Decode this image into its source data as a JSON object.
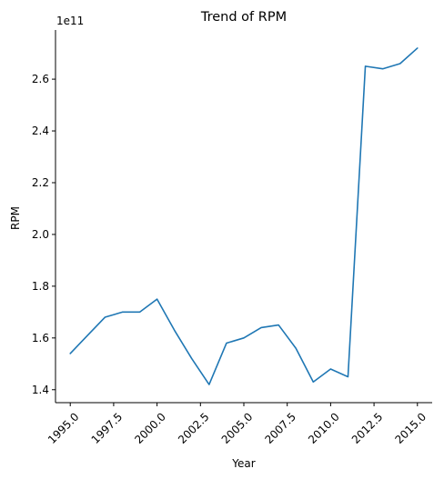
{
  "chart_data": {
    "type": "line",
    "title": "Trend of RPM",
    "xlabel": "Year",
    "ylabel": "RPM",
    "y_offset_text": "1e11",
    "x_ticks": [
      1995.0,
      1997.5,
      2000.0,
      2002.5,
      2005.0,
      2007.5,
      2010.0,
      2012.5,
      2015.0
    ],
    "x_tick_labels": [
      "1995.0",
      "1997.5",
      "2000.0",
      "2002.5",
      "2005.0",
      "2007.5",
      "2010.0",
      "2012.5",
      "2015.0"
    ],
    "y_ticks": [
      140000000000.0,
      160000000000.0,
      180000000000.0,
      200000000000.0,
      220000000000.0,
      240000000000.0,
      260000000000.0
    ],
    "y_tick_labels": [
      "1.4",
      "1.6",
      "1.8",
      "2.0",
      "2.2",
      "2.4",
      "2.6"
    ],
    "xlim": [
      1994.15,
      2015.85
    ],
    "ylim": [
      135000000000.0,
      279000000000.0
    ],
    "grid": false,
    "legend": "none",
    "series": [
      {
        "color": "#1f77b4",
        "x": [
          1995,
          1996,
          1997,
          1998,
          1999,
          2000,
          2001,
          2002,
          2003,
          2004,
          2005,
          2006,
          2007,
          2008,
          2009,
          2010,
          2011,
          2012,
          2013,
          2014,
          2015
        ],
        "values": [
          154000000000.0,
          161000000000.0,
          168000000000.0,
          170000000000.0,
          170000000000.0,
          175000000000.0,
          163000000000.0,
          152000000000.0,
          142000000000.0,
          158000000000.0,
          160000000000.0,
          164000000000.0,
          165000000000.0,
          156000000000.0,
          143000000000.0,
          148000000000.0,
          145000000000.0,
          265000000000.0,
          264000000000.0,
          266000000000.0,
          272000000000.0
        ]
      }
    ]
  }
}
